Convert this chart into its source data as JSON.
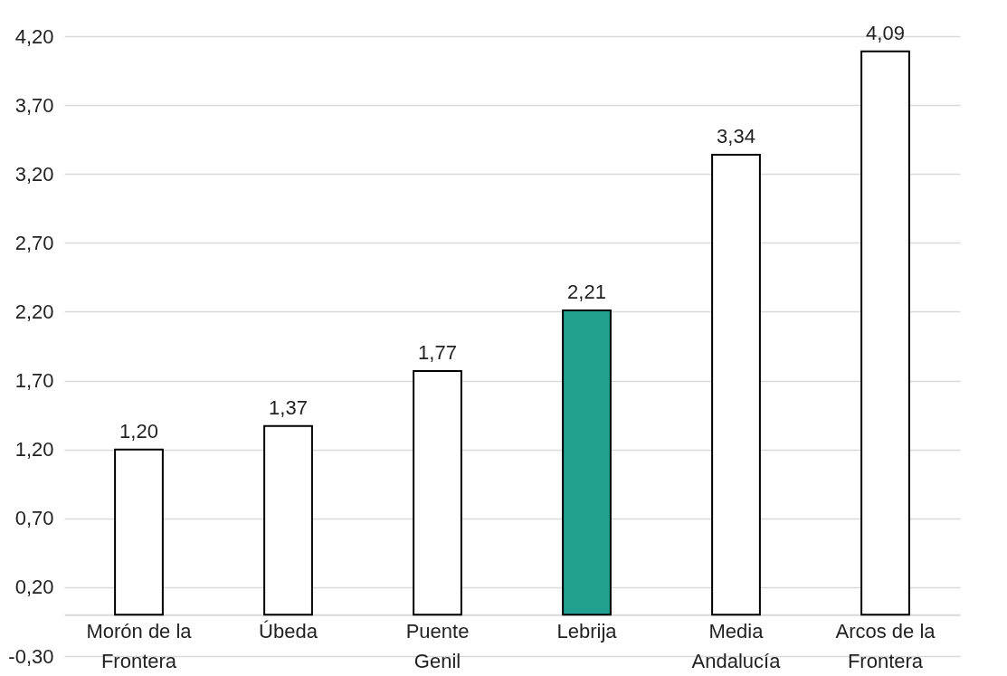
{
  "chart_data": {
    "type": "bar",
    "categories": [
      "Morón de la Frontera",
      "Úbeda",
      "Puente Genil",
      "Lebrija",
      "Media Andalucía",
      "Arcos de la Frontera"
    ],
    "values": [
      1.2,
      1.37,
      1.77,
      2.21,
      3.34,
      4.09
    ],
    "value_labels": [
      "1,20",
      "1,37",
      "1,77",
      "2,21",
      "3,34",
      "4,09"
    ],
    "colors": [
      "#ffffff",
      "#ffffff",
      "#ffffff",
      "#21a08f",
      "#ffffff",
      "#ffffff"
    ],
    "ylim": [
      -0.3,
      4.2
    ],
    "yticks": [
      {
        "value": -0.3,
        "label": "-0,30"
      },
      {
        "value": 0.2,
        "label": "0,20"
      },
      {
        "value": 0.7,
        "label": "0,70"
      },
      {
        "value": 1.2,
        "label": "1,20"
      },
      {
        "value": 1.7,
        "label": "1,70"
      },
      {
        "value": 2.2,
        "label": "2,20"
      },
      {
        "value": 2.7,
        "label": "2,70"
      },
      {
        "value": 3.2,
        "label": "3,20"
      },
      {
        "value": 3.7,
        "label": "3,70"
      },
      {
        "value": 4.2,
        "label": "4,20"
      }
    ],
    "grid": "y"
  }
}
